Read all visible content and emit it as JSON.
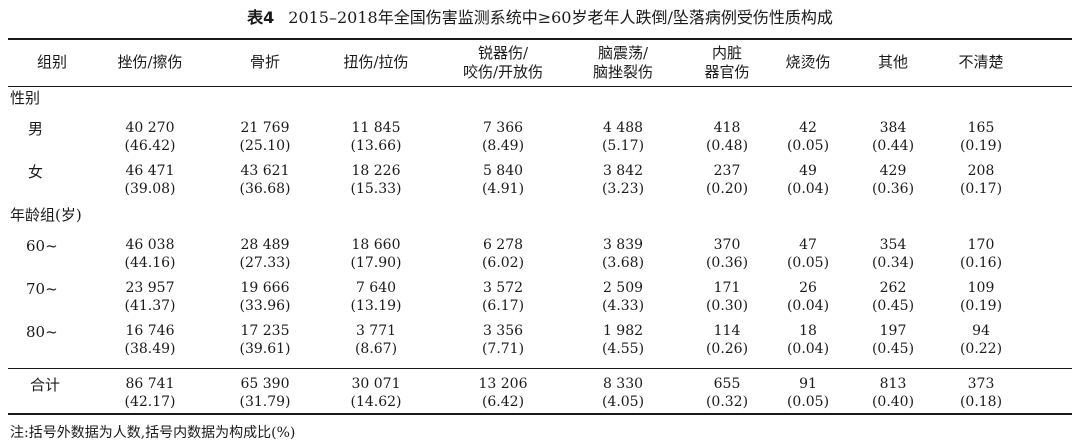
{
  "table": {
    "label": "表4",
    "caption": "2015–2018年全国伤害监测系统中≥60岁老年人跌倒/坠落病例受伤性质构成",
    "headers": [
      "组别",
      "挫伤/擦伤",
      "骨折",
      "扭伤/拉伤",
      "锐器伤/\n咬伤/开放伤",
      "脑震荡/\n脑挫裂伤",
      "内脏\n器官伤",
      "烧烫伤",
      "其他",
      "不清楚"
    ],
    "sections": [
      {
        "title": "性别",
        "rows": [
          {
            "label": "男",
            "cells": [
              [
                "40 270",
                "(46.42)"
              ],
              [
                "21 769",
                "(25.10)"
              ],
              [
                "11 845",
                "(13.66)"
              ],
              [
                "7 366",
                "(8.49)"
              ],
              [
                "4 488",
                "(5.17)"
              ],
              [
                "418",
                "(0.48)"
              ],
              [
                "42",
                "(0.05)"
              ],
              [
                "384",
                "(0.44)"
              ],
              [
                "165",
                "(0.19)"
              ]
            ]
          },
          {
            "label": "女",
            "cells": [
              [
                "46 471",
                "(39.08)"
              ],
              [
                "43 621",
                "(36.68)"
              ],
              [
                "18 226",
                "(15.33)"
              ],
              [
                "5 840",
                "(4.91)"
              ],
              [
                "3 842",
                "(3.23)"
              ],
              [
                "237",
                "(0.20)"
              ],
              [
                "49",
                "(0.04)"
              ],
              [
                "429",
                "(0.36)"
              ],
              [
                "208",
                "(0.17)"
              ]
            ]
          }
        ]
      },
      {
        "title": "年龄组(岁)",
        "rows": [
          {
            "label": "60~",
            "cells": [
              [
                "46 038",
                "(44.16)"
              ],
              [
                "28 489",
                "(27.33)"
              ],
              [
                "18 660",
                "(17.90)"
              ],
              [
                "6 278",
                "(6.02)"
              ],
              [
                "3 839",
                "(3.68)"
              ],
              [
                "370",
                "(0.36)"
              ],
              [
                "47",
                "(0.05)"
              ],
              [
                "354",
                "(0.34)"
              ],
              [
                "170",
                "(0.16)"
              ]
            ]
          },
          {
            "label": "70~",
            "cells": [
              [
                "23 957",
                "(41.37)"
              ],
              [
                "19 666",
                "(33.96)"
              ],
              [
                "7 640",
                "(13.19)"
              ],
              [
                "3 572",
                "(6.17)"
              ],
              [
                "2 509",
                "(4.33)"
              ],
              [
                "171",
                "(0.30)"
              ],
              [
                "26",
                "(0.04)"
              ],
              [
                "262",
                "(0.45)"
              ],
              [
                "109",
                "(0.19)"
              ]
            ]
          },
          {
            "label": "80~",
            "cells": [
              [
                "16 746",
                "(38.49)"
              ],
              [
                "17 235",
                "(39.61)"
              ],
              [
                "3 771",
                "(8.67)"
              ],
              [
                "3 356",
                "(7.71)"
              ],
              [
                "1 982",
                "(4.55)"
              ],
              [
                "114",
                "(0.26)"
              ],
              [
                "18",
                "(0.04)"
              ],
              [
                "197",
                "(0.45)"
              ],
              [
                "94",
                "(0.22)"
              ]
            ]
          }
        ]
      }
    ],
    "total": {
      "label": "合计",
      "cells": [
        [
          "86 741",
          "(42.17)"
        ],
        [
          "65 390",
          "(31.79)"
        ],
        [
          "30 071",
          "(14.62)"
        ],
        [
          "13 206",
          "(6.42)"
        ],
        [
          "8 330",
          "(4.05)"
        ],
        [
          "655",
          "(0.32)"
        ],
        [
          "91",
          "(0.05)"
        ],
        [
          "813",
          "(0.40)"
        ],
        [
          "373",
          "(0.18)"
        ]
      ]
    },
    "note": "注:括号外数据为人数,括号内数据为构成比(%)"
  }
}
